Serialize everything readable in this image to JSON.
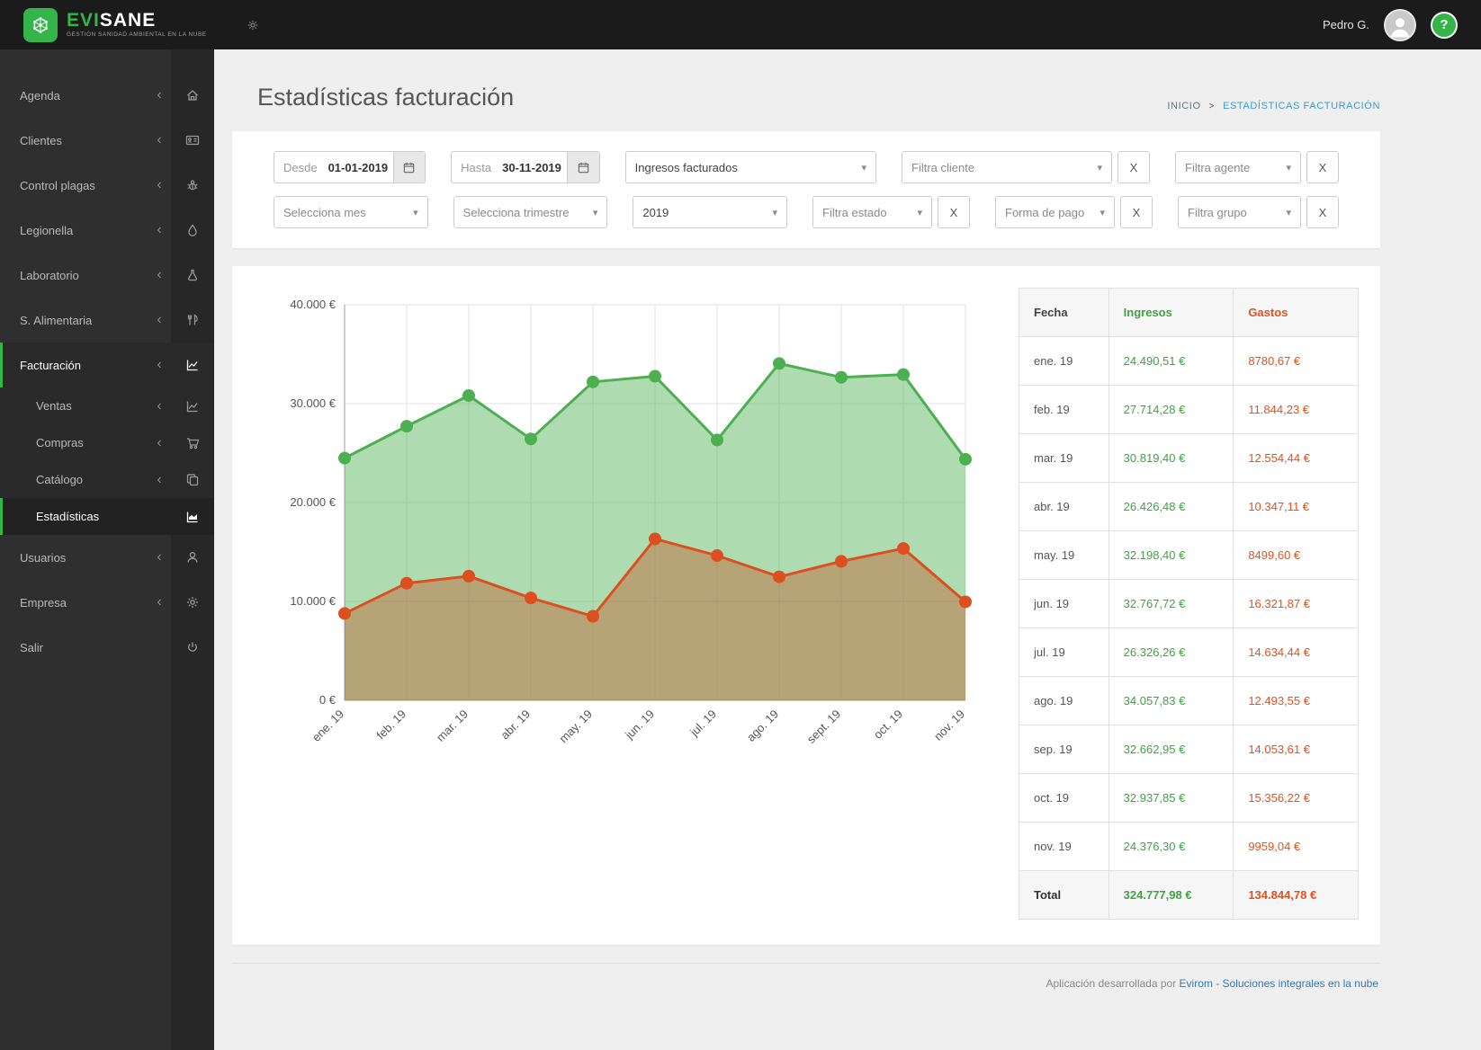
{
  "topbar": {
    "brand_evi": "EVI",
    "brand_sane": "SANE",
    "brand_tagline": "GESTIÓN SANIDAD AMBIENTAL EN LA NUBE",
    "user_name": "Pedro G.",
    "help_label": "?"
  },
  "page": {
    "title": "Estadísticas facturación"
  },
  "breadcrumb": {
    "home": "INICIO",
    "separator": ">",
    "current": "ESTADÍSTICAS FACTURACIÓN"
  },
  "sidebar": {
    "items": [
      {
        "label": "Agenda",
        "icon": "home-icon"
      },
      {
        "label": "Clientes",
        "icon": "address-card-icon"
      },
      {
        "label": "Control plagas",
        "icon": "bug-icon"
      },
      {
        "label": "Legionella",
        "icon": "droplet-icon"
      },
      {
        "label": "Laboratorio",
        "icon": "flask-icon"
      },
      {
        "label": "S. Alimentaria",
        "icon": "utensils-icon"
      },
      {
        "label": "Facturación",
        "icon": "chart-line-icon",
        "children": [
          {
            "label": "Ventas",
            "icon": "chart-line-icon"
          },
          {
            "label": "Compras",
            "icon": "cart-icon"
          },
          {
            "label": "Catálogo",
            "icon": "copy-icon"
          },
          {
            "label": "Estadísticas",
            "icon": "chart-area-icon",
            "active": true
          }
        ]
      },
      {
        "label": "Usuarios",
        "icon": "user-icon"
      },
      {
        "label": "Empresa",
        "icon": "gear-icon"
      },
      {
        "label": "Salir",
        "icon": "power-icon"
      }
    ],
    "collapse_glyph": "‹"
  },
  "filters": {
    "desde": {
      "label": "Desde",
      "value": "01-01-2019"
    },
    "hasta": {
      "label": "Hasta",
      "value": "30-11-2019"
    },
    "tipo": {
      "value": "Ingresos facturados"
    },
    "cliente": {
      "placeholder": "Filtra cliente"
    },
    "agente": {
      "placeholder": "Filtra agente"
    },
    "mes": {
      "placeholder": "Selecciona mes"
    },
    "trimestre": {
      "placeholder": "Selecciona trimestre"
    },
    "anio": {
      "value": "2019"
    },
    "estado": {
      "placeholder": "Filtra estado"
    },
    "forma_pago": {
      "placeholder": "Forma de pago"
    },
    "grupo": {
      "placeholder": "Filtra grupo"
    },
    "clear_label": "X",
    "caret_glyph": "▾"
  },
  "chart_data": {
    "type": "area",
    "title": "",
    "categories": [
      "ene. 19",
      "feb. 19",
      "mar. 19",
      "abr. 19",
      "may. 19",
      "jun. 19",
      "jul. 19",
      "ago. 19",
      "sept. 19",
      "oct. 19",
      "nov. 19"
    ],
    "series": [
      {
        "name": "Ingresos",
        "color": "#4caf50",
        "fill": "rgba(76,175,80,0.45)",
        "values": [
          24490.51,
          27714.28,
          30819.4,
          26426.48,
          32198.4,
          32767.72,
          26326.26,
          34057.83,
          32662.95,
          32937.85,
          24376.3
        ]
      },
      {
        "name": "Gastos",
        "color": "#dd4f1e",
        "fill": "rgba(193,86,38,0.42)",
        "values": [
          8780.67,
          11844.23,
          12554.44,
          10347.11,
          8499.6,
          16321.87,
          14634.44,
          12493.55,
          14053.61,
          15356.22,
          9959.04
        ]
      }
    ],
    "ylim": [
      0,
      40000
    ],
    "yticks": [
      0,
      10000,
      20000,
      30000,
      40000
    ],
    "ytick_labels": [
      "0 €",
      "10.000 €",
      "20.000 €",
      "30.000 €",
      "40.000 €"
    ],
    "grid": true,
    "legend_position": "none"
  },
  "table": {
    "headers": [
      "Fecha",
      "Ingresos",
      "Gastos"
    ],
    "rows": [
      [
        "ene. 19",
        "24.490,51 €",
        "8780,67 €"
      ],
      [
        "feb. 19",
        "27.714,28 €",
        "11.844,23 €"
      ],
      [
        "mar. 19",
        "30.819,40 €",
        "12.554,44 €"
      ],
      [
        "abr. 19",
        "26.426,48 €",
        "10.347,11 €"
      ],
      [
        "may. 19",
        "32.198,40 €",
        "8499,60 €"
      ],
      [
        "jun. 19",
        "32.767,72 €",
        "16.321,87 €"
      ],
      [
        "jul. 19",
        "26.326,26 €",
        "14.634,44 €"
      ],
      [
        "ago. 19",
        "34.057,83 €",
        "12.493,55 €"
      ],
      [
        "sep. 19",
        "32.662,95 €",
        "14.053,61 €"
      ],
      [
        "oct. 19",
        "32.937,85 €",
        "15.356,22 €"
      ],
      [
        "nov. 19",
        "24.376,30 €",
        "9959,04 €"
      ]
    ],
    "total": [
      "Total",
      "324.777,98 €",
      "134.844,78 €"
    ]
  },
  "footer": {
    "prefix": "Aplicación desarrollada por",
    "link": "Evirom - Soluciones integrales en la nube"
  }
}
